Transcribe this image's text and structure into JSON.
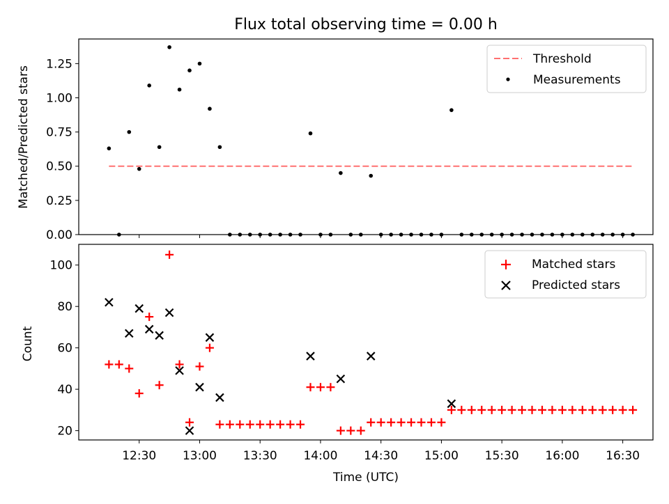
{
  "chart_data": [
    {
      "type": "scatter",
      "title": "Flux total observing time = 0.00 h",
      "xlabel": "",
      "ylabel": "Matched/Predicted stars",
      "xlim": [
        720,
        1005
      ],
      "ylim": [
        0,
        1.43
      ],
      "yticks": [
        "0.00",
        "0.25",
        "0.50",
        "0.75",
        "1.00",
        "1.25"
      ],
      "legend_location": "upper right",
      "threshold": {
        "name": "Threshold",
        "value": 0.5,
        "x_range": [
          735,
          995
        ],
        "color": "#ff7070"
      },
      "series": [
        {
          "name": "Measurements",
          "color": "#000000",
          "x": [
            735,
            740,
            745,
            750,
            755,
            760,
            765,
            770,
            775,
            780,
            785,
            790,
            795,
            800,
            805,
            810,
            815,
            820,
            825,
            830,
            835,
            840,
            845,
            850,
            855,
            860,
            865,
            870,
            875,
            880,
            885,
            890,
            895,
            900,
            905,
            910,
            915,
            920,
            925,
            930,
            935,
            940,
            945,
            950,
            955,
            960,
            965,
            970,
            975,
            980,
            985,
            990,
            995
          ],
          "y": [
            0.63,
            0.0,
            0.75,
            0.48,
            1.09,
            0.64,
            1.37,
            1.06,
            1.2,
            1.25,
            0.92,
            0.64,
            0.0,
            0.0,
            0.0,
            0.0,
            0.0,
            0.0,
            0.0,
            0.0,
            0.74,
            0.0,
            0.0,
            0.45,
            0.0,
            0.0,
            0.43,
            0.0,
            0.0,
            0.0,
            0.0,
            0.0,
            0.0,
            0.0,
            0.91,
            0.0,
            0.0,
            0.0,
            0.0,
            0.0,
            0.0,
            0.0,
            0.0,
            0.0,
            0.0,
            0.0,
            0.0,
            0.0,
            0.0,
            0.0,
            0.0,
            0.0,
            0.0
          ]
        }
      ]
    },
    {
      "type": "scatter",
      "title": "",
      "xlabel": "Time (UTC)",
      "ylabel": "Count",
      "xlim": [
        720,
        1005
      ],
      "ylim": [
        15.5,
        110
      ],
      "yticks": [
        "20",
        "40",
        "60",
        "80",
        "100"
      ],
      "xticks": [
        {
          "value": 750,
          "label": "12:30"
        },
        {
          "value": 780,
          "label": "13:00"
        },
        {
          "value": 810,
          "label": "13:30"
        },
        {
          "value": 840,
          "label": "14:00"
        },
        {
          "value": 870,
          "label": "14:30"
        },
        {
          "value": 900,
          "label": "15:00"
        },
        {
          "value": 930,
          "label": "15:30"
        },
        {
          "value": 960,
          "label": "16:00"
        },
        {
          "value": 990,
          "label": "16:30"
        }
      ],
      "legend_location": "upper right",
      "series": [
        {
          "name": "Matched stars",
          "marker": "plus",
          "color": "#ff0000",
          "x": [
            735,
            740,
            745,
            750,
            755,
            760,
            765,
            770,
            775,
            780,
            785,
            790,
            795,
            800,
            805,
            810,
            815,
            820,
            825,
            830,
            835,
            840,
            845,
            850,
            855,
            860,
            865,
            870,
            875,
            880,
            885,
            890,
            895,
            900,
            905,
            910,
            915,
            920,
            925,
            930,
            935,
            940,
            945,
            950,
            955,
            960,
            965,
            970,
            975,
            980,
            985,
            990,
            995
          ],
          "y": [
            52,
            52,
            50,
            38,
            75,
            42,
            105,
            52,
            24,
            51,
            60,
            23,
            23,
            23,
            23,
            23,
            23,
            23,
            23,
            23,
            41,
            41,
            41,
            20,
            20,
            20,
            24,
            24,
            24,
            24,
            24,
            24,
            24,
            24,
            30,
            30,
            30,
            30,
            30,
            30,
            30,
            30,
            30,
            30,
            30,
            30,
            30,
            30,
            30,
            30,
            30,
            30,
            30
          ]
        },
        {
          "name": "Predicted stars",
          "marker": "x",
          "color": "#000000",
          "x": [
            735,
            745,
            750,
            755,
            760,
            765,
            770,
            775,
            780,
            785,
            790,
            835,
            850,
            865,
            905
          ],
          "y": [
            82,
            67,
            79,
            69,
            66,
            77,
            49,
            20,
            41,
            65,
            36,
            56,
            45,
            56,
            33
          ]
        }
      ]
    }
  ]
}
